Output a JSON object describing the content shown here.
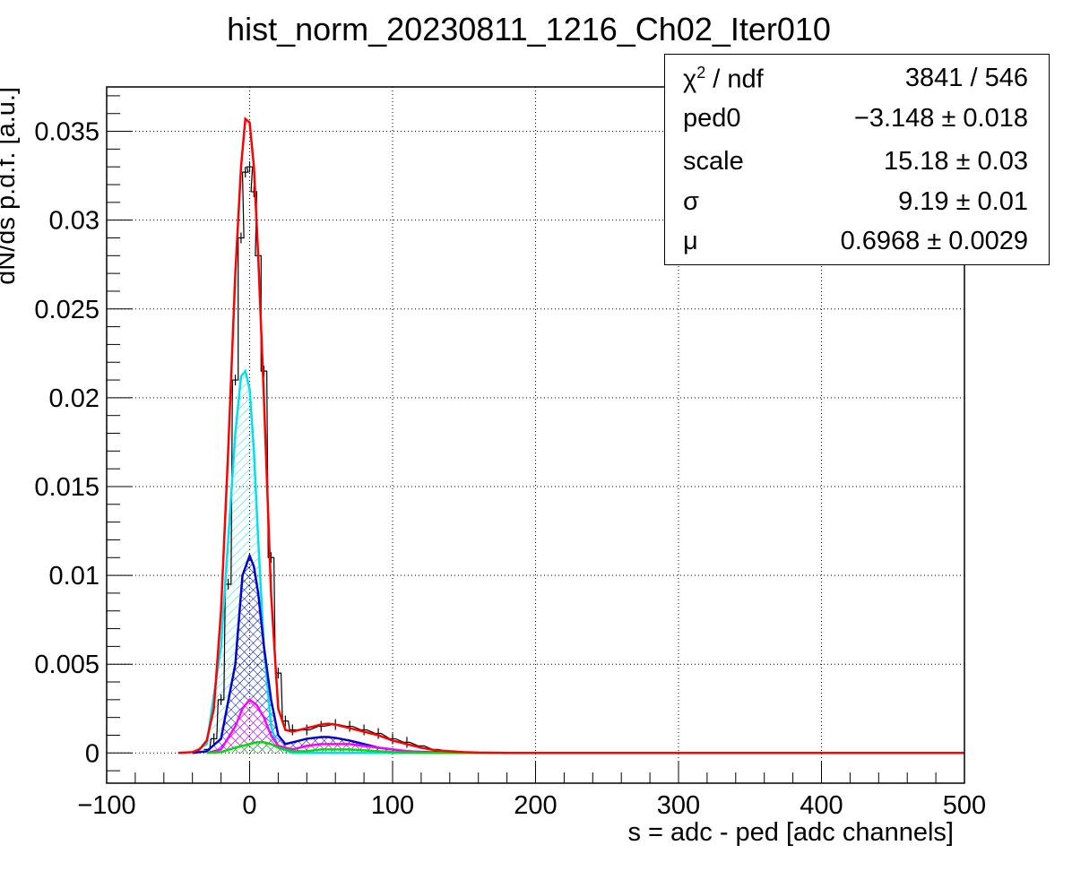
{
  "chart_data": {
    "type": "line",
    "title": "hist_norm_20230811_1216_Ch02_Iter010",
    "xlabel": "s = adc - ped [adc channels]",
    "ylabel": "dN/ds p.d.f. [a.u.]",
    "xlim": [
      -100,
      500
    ],
    "ylim": [
      -0.0017,
      0.0375
    ],
    "x_ticks": [
      -100,
      0,
      100,
      200,
      300,
      400,
      500
    ],
    "x_tick_labels": [
      "−100",
      "0",
      "100",
      "200",
      "300",
      "400",
      "500"
    ],
    "y_ticks": [
      0,
      0.005,
      0.01,
      0.015,
      0.02,
      0.025,
      0.03,
      0.035
    ],
    "y_tick_labels": [
      "0",
      "0.005",
      "0.01",
      "0.015",
      "0.02",
      "0.025",
      "0.03",
      "0.035"
    ],
    "grid": true,
    "series": [
      {
        "key": "data",
        "style": "histogram",
        "color": "#000000",
        "x": [
          -30,
          -25,
          -20,
          -15,
          -10,
          -6,
          -3,
          0,
          3,
          6,
          10,
          15,
          20,
          25,
          30,
          40,
          50,
          60,
          70,
          80,
          90,
          100,
          110,
          120,
          130,
          140,
          150,
          170,
          190
        ],
        "y": [
          0.0002,
          0.0008,
          0.003,
          0.0095,
          0.021,
          0.029,
          0.0327,
          0.033,
          0.0316,
          0.028,
          0.0215,
          0.011,
          0.0045,
          0.0018,
          0.0013,
          0.0013,
          0.0015,
          0.0016,
          0.0015,
          0.0013,
          0.0011,
          0.0008,
          0.0006,
          0.0004,
          0.0002,
          0.0001,
          5e-05,
          2e-05,
          0
        ]
      },
      {
        "key": "total",
        "style": "line",
        "color": "#ff0000",
        "x": [
          -50,
          -40,
          -35,
          -30,
          -25,
          -20,
          -15,
          -10,
          -6,
          -3,
          0,
          3,
          6,
          10,
          15,
          20,
          25,
          30,
          40,
          50,
          55,
          60,
          70,
          80,
          90,
          100,
          110,
          120,
          130,
          140,
          150,
          160,
          180,
          200,
          500
        ],
        "y": [
          0,
          5e-05,
          0.0002,
          0.0007,
          0.0025,
          0.008,
          0.017,
          0.027,
          0.033,
          0.0357,
          0.0355,
          0.033,
          0.028,
          0.02,
          0.009,
          0.0025,
          0.0013,
          0.0012,
          0.0014,
          0.0016,
          0.00165,
          0.0016,
          0.0014,
          0.0012,
          0.001,
          0.0007,
          0.0005,
          0.0003,
          0.00015,
          0.0001,
          5e-05,
          2e-05,
          0,
          0,
          0
        ]
      },
      {
        "key": "n1",
        "style": "hatched",
        "color": "#00e0f0",
        "x": [
          -40,
          -30,
          -20,
          -15,
          -10,
          -6,
          -3,
          0,
          3,
          6,
          10,
          15,
          20,
          30,
          500
        ],
        "y": [
          0,
          0.0005,
          0.006,
          0.012,
          0.018,
          0.0212,
          0.0215,
          0.0205,
          0.017,
          0.012,
          0.006,
          0.0015,
          0.0003,
          0,
          0
        ]
      },
      {
        "key": "n2",
        "style": "hatched",
        "color": "#0000cc",
        "x": [
          -40,
          -30,
          -20,
          -10,
          -5,
          0,
          3,
          6,
          10,
          15,
          20,
          25,
          30,
          40,
          50,
          55,
          60,
          70,
          80,
          90,
          100,
          110,
          130,
          150,
          500
        ],
        "y": [
          0,
          0.0001,
          0.0008,
          0.005,
          0.01,
          0.0111,
          0.0105,
          0.009,
          0.006,
          0.003,
          0.001,
          0.0005,
          0.0006,
          0.0008,
          0.0009,
          0.0009,
          0.00085,
          0.0007,
          0.0005,
          0.0003,
          0.0002,
          0.0001,
          3e-05,
          0,
          0
        ]
      },
      {
        "key": "n3",
        "style": "hatched",
        "color": "#ff00ff",
        "x": [
          -30,
          -20,
          -10,
          -5,
          0,
          5,
          10,
          15,
          20,
          30,
          40,
          50,
          60,
          70,
          80,
          90,
          100,
          110,
          130,
          500
        ],
        "y": [
          0,
          0.0002,
          0.0015,
          0.0025,
          0.003,
          0.0027,
          0.002,
          0.001,
          0.0004,
          0.0002,
          0.0004,
          0.0005,
          0.0005,
          0.0005,
          0.0004,
          0.0003,
          0.0002,
          0.0001,
          0,
          0
        ]
      },
      {
        "key": "n4",
        "style": "hatched",
        "color": "#00dd00",
        "x": [
          -30,
          -20,
          -10,
          0,
          5,
          10,
          15,
          20,
          30,
          40,
          50,
          60,
          70,
          80,
          90,
          100,
          110,
          130,
          500
        ],
        "y": [
          0,
          5e-05,
          0.0003,
          0.0005,
          0.0006,
          0.0006,
          0.0005,
          0.0003,
          0.0001,
          0.0001,
          0.0002,
          0.0002,
          0.0002,
          0.00015,
          0.0001,
          5e-05,
          2e-05,
          0,
          0
        ]
      }
    ]
  },
  "stats_box": {
    "rows": [
      {
        "name_main": "χ",
        "name_sup": "2",
        "name_rest": " / ndf",
        "value": "3841 / 546"
      },
      {
        "name_main": "ped0",
        "value": "−3.148 ± 0.018"
      },
      {
        "name_main": "scale",
        "value": "15.18 ± 0.03"
      },
      {
        "name_main": "σ",
        "value": "9.19 ± 0.01"
      },
      {
        "name_main": "μ",
        "value": "0.6968 ± 0.0029"
      }
    ]
  }
}
